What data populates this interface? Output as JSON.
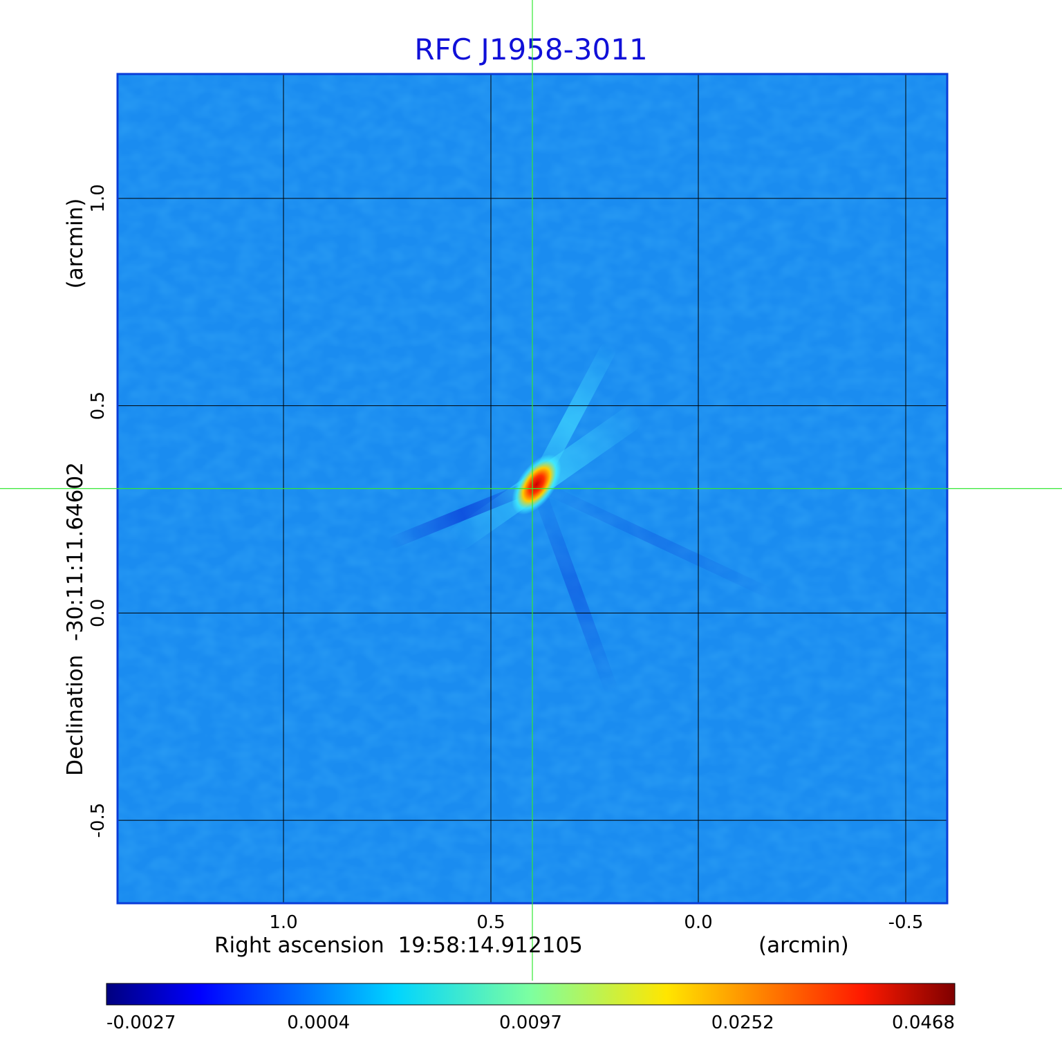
{
  "chart_data": {
    "type": "heatmap",
    "title": "RFC J1958-3011",
    "xlabel": "Right ascension  19:58:14.912105",
    "x_unit": "(arcmin)",
    "ylabel": "Declination  -30:11:11.64602",
    "y_unit": "(arcmin)",
    "x_ticks": [
      "1.0",
      "0.5",
      "0.0",
      "-0.5"
    ],
    "y_ticks": [
      "1.0",
      "0.5",
      "0.0",
      "-0.5"
    ],
    "x_tick_values": [
      1.0,
      0.5,
      0.0,
      -0.5
    ],
    "y_tick_values": [
      1.0,
      0.5,
      0.0,
      -0.5
    ],
    "xlim": [
      1.4,
      -0.6
    ],
    "ylim": [
      -0.7,
      1.3
    ],
    "grid": true,
    "crosshair": {
      "x": 0.4,
      "y": 0.3
    },
    "peak": {
      "x": 0.39,
      "y": 0.31,
      "value": 0.0468
    },
    "colorbar": {
      "ticks": [
        "-0.0027",
        "0.0004",
        "0.0097",
        "0.0252",
        "0.0468"
      ],
      "tick_values": [
        -0.0027,
        0.0004,
        0.0097,
        0.0252,
        0.0468
      ],
      "colormap": "jet"
    },
    "colors": {
      "title": "#1010d8",
      "background_field": "#1a8cf0",
      "grid": "#000000",
      "crosshair": "#33e833",
      "frame": "#0a3cd8"
    }
  }
}
